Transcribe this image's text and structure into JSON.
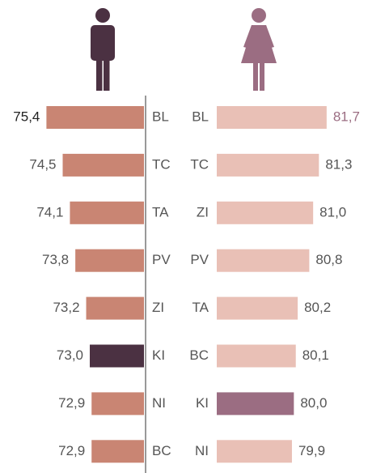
{
  "chart_data": [
    {
      "type": "bar",
      "orientation": "horizontal",
      "categories": [
        "BL",
        "TC",
        "TA",
        "PV",
        "ZI",
        "KI",
        "NI",
        "BC"
      ],
      "values": [
        75.4,
        74.5,
        74.1,
        73.8,
        73.2,
        73.0,
        72.9,
        72.9
      ],
      "value_labels": [
        "75,4",
        "74,5",
        "74,1",
        "73,8",
        "73,2",
        "73,0",
        "72,9",
        "72,9"
      ],
      "colors": [
        "#c98573",
        "#c98573",
        "#c98573",
        "#c98573",
        "#c98573",
        "#4b3142",
        "#c98573",
        "#c98573"
      ],
      "value_label_colors": [
        "#222222",
        "#555555",
        "#555555",
        "#555555",
        "#555555",
        "#555555",
        "#555555",
        "#555555"
      ],
      "xlim": [
        70,
        76
      ]
    },
    {
      "type": "bar",
      "orientation": "horizontal",
      "categories": [
        "BL",
        "TC",
        "ZI",
        "PV",
        "TA",
        "BC",
        "KI",
        "NI"
      ],
      "values": [
        81.7,
        81.3,
        81.0,
        80.8,
        80.2,
        80.1,
        80.0,
        79.9
      ],
      "value_labels": [
        "81,7",
        "81,3",
        "81,0",
        "80,8",
        "80,2",
        "80,1",
        "80,0",
        "79,9"
      ],
      "colors": [
        "#e9c0b6",
        "#e9c0b6",
        "#e9c0b6",
        "#e9c0b6",
        "#e9c0b6",
        "#e9c0b6",
        "#9b6d82",
        "#e9c0b6"
      ],
      "value_label_colors": [
        "#9b6d82",
        "#555555",
        "#555555",
        "#555555",
        "#555555",
        "#555555",
        "#555555",
        "#555555"
      ],
      "xlim": [
        76,
        82
      ]
    }
  ]
}
